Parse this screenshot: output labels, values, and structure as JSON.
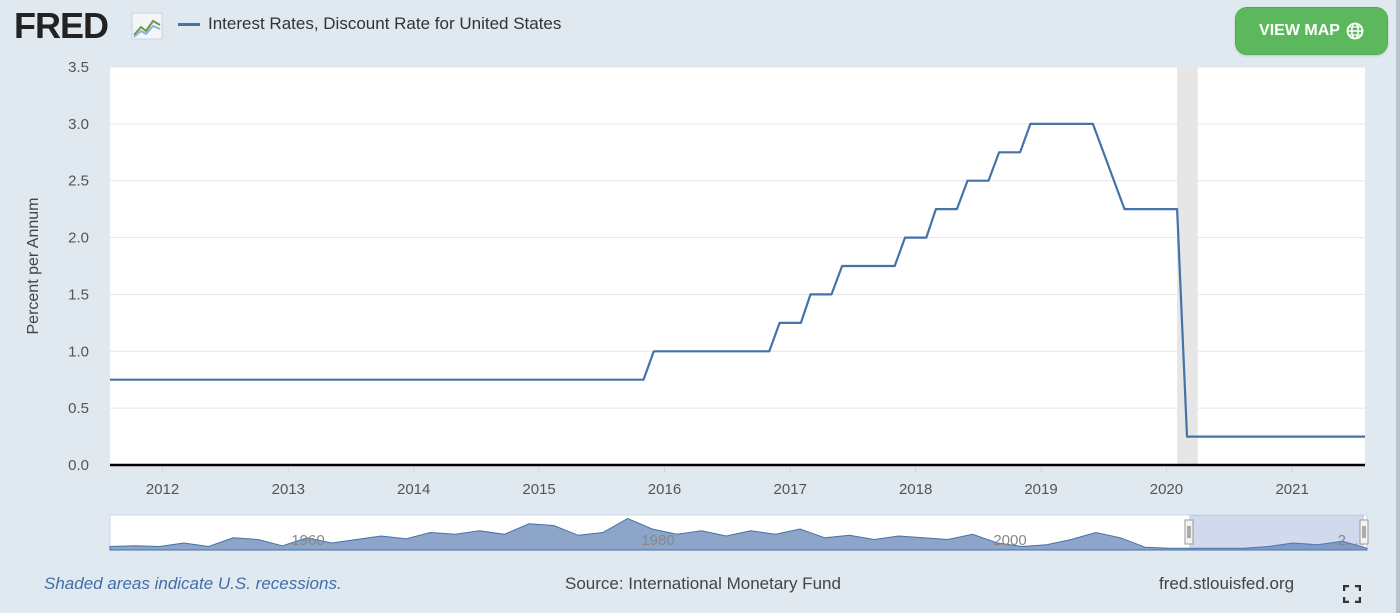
{
  "header": {
    "logo_text": "FRED",
    "series_title": "Interest Rates, Discount Rate for United States",
    "view_map_label": "VIEW MAP"
  },
  "colors": {
    "series_line": "#4572a7",
    "recession_band": "#e6e6e6",
    "button_green": "#5cb85c",
    "navigator_fill": "#6f8fbc"
  },
  "icons": {
    "logo": "fred-chart-icon",
    "globe": "globe-icon",
    "fullscreen": "fullscreen-icon"
  },
  "chart_data": {
    "type": "line",
    "title": "",
    "xlabel": "",
    "ylabel": "Percent per Annum",
    "ylim": [
      0,
      3.5
    ],
    "xlim": [
      "2011-08-01",
      "2021-08-01"
    ],
    "x_ticks": [
      "2012",
      "2013",
      "2014",
      "2015",
      "2016",
      "2017",
      "2018",
      "2019",
      "2020",
      "2021"
    ],
    "y_ticks": [
      "0.0",
      "0.5",
      "1.0",
      "1.5",
      "2.0",
      "2.5",
      "3.0",
      "3.5"
    ],
    "grid": true,
    "recessions": [
      [
        "2020-02-01",
        "2020-04-01"
      ]
    ],
    "series": [
      {
        "name": "Interest Rates, Discount Rate for United States",
        "points": [
          [
            "2011-08",
            0.75
          ],
          [
            "2015-11",
            0.75
          ],
          [
            "2015-12",
            1.0
          ],
          [
            "2016-11",
            1.0
          ],
          [
            "2016-12",
            1.25
          ],
          [
            "2017-02",
            1.25
          ],
          [
            "2017-03",
            1.5
          ],
          [
            "2017-05",
            1.5
          ],
          [
            "2017-06",
            1.75
          ],
          [
            "2017-11",
            1.75
          ],
          [
            "2017-12",
            2.0
          ],
          [
            "2018-02",
            2.0
          ],
          [
            "2018-03",
            2.25
          ],
          [
            "2018-05",
            2.25
          ],
          [
            "2018-06",
            2.5
          ],
          [
            "2018-08",
            2.5
          ],
          [
            "2018-09",
            2.75
          ],
          [
            "2018-11",
            2.75
          ],
          [
            "2018-12",
            3.0
          ],
          [
            "2019-06",
            3.0
          ],
          [
            "2019-09",
            2.25
          ],
          [
            "2020-02",
            2.25
          ],
          [
            "2020-03",
            0.25
          ],
          [
            "2021-08",
            0.25
          ]
        ]
      }
    ],
    "navigator": {
      "labels": [
        "1960",
        "1980",
        "2000",
        "2..."
      ]
    }
  },
  "footer": {
    "recession_note": "Shaded areas indicate U.S. recessions.",
    "source": "Source: International Monetary Fund",
    "site": "fred.stlouisfed.org"
  }
}
